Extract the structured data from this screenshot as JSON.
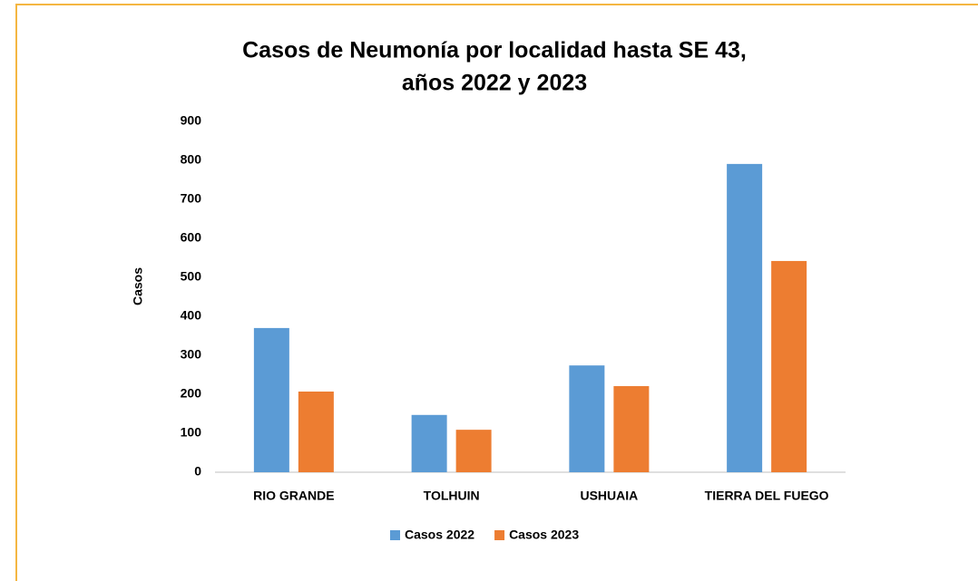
{
  "chart_data": {
    "type": "bar",
    "title": [
      "Casos de Neumonía por localidad hasta SE 43,",
      "años 2022 y 2023"
    ],
    "ylabel": "Casos",
    "categories": [
      "RIO GRANDE",
      "TOLHUIN",
      "USHUAIA",
      "TIERRA DEL FUEGO"
    ],
    "series": [
      {
        "name": "Casos 2022",
        "color": "#5b9bd5",
        "values": [
          370,
          147,
          274,
          791
        ]
      },
      {
        "name": "Casos 2023",
        "color": "#ed7d31",
        "values": [
          207,
          109,
          221,
          542
        ]
      }
    ],
    "ylim": [
      0,
      900
    ],
    "yticks": [
      0,
      100,
      200,
      300,
      400,
      500,
      600,
      700,
      800,
      900
    ],
    "grid": false,
    "legend": "bottom"
  }
}
